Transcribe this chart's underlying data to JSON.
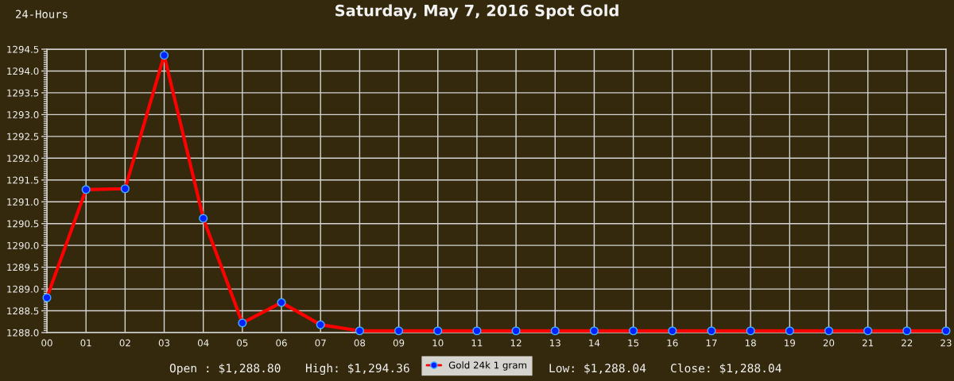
{
  "chart_data": {
    "type": "line",
    "title": "Saturday, May 7, 2016 Spot Gold",
    "annotations": [
      "24-Hours",
      "Open : $1,288.80",
      "High: $1,294.36",
      "Low: $1,288.04",
      "Close: $1,288.04"
    ],
    "categories": [
      "00",
      "01",
      "02",
      "03",
      "04",
      "05",
      "06",
      "07",
      "08",
      "09",
      "10",
      "11",
      "12",
      "13",
      "14",
      "15",
      "16",
      "17",
      "18",
      "19",
      "20",
      "21",
      "22",
      "23"
    ],
    "series": [
      {
        "name": "Gold 24k 1 gram",
        "color": "#ff0000",
        "values": [
          1288.8,
          1291.28,
          1291.3,
          1294.36,
          1290.62,
          1288.22,
          1288.69,
          1288.18,
          1288.04,
          1288.04,
          1288.04,
          1288.04,
          1288.04,
          1288.04,
          1288.04,
          1288.04,
          1288.04,
          1288.04,
          1288.04,
          1288.04,
          1288.04,
          1288.04,
          1288.04,
          1288.04
        ]
      }
    ],
    "ylim": [
      1288,
      1294.5
    ],
    "yticks": [
      {
        "value": 1288,
        "label": "1288.0"
      },
      {
        "value": 1288.05,
        "label": null
      },
      {
        "value": 1288.1,
        "label": null
      },
      {
        "value": 1288.15,
        "label": null
      },
      {
        "value": 1288.2,
        "label": null
      },
      {
        "value": 1288.25,
        "label": null
      },
      {
        "value": 1288.3,
        "label": null
      },
      {
        "value": 1288.35,
        "label": null
      },
      {
        "value": 1288.4,
        "label": null
      },
      {
        "value": 1288.45,
        "label": null
      },
      1288.5,
      {
        "value": 1288.55,
        "label": null
      },
      {
        "value": 1288.6,
        "label": null
      },
      {
        "value": 1288.65,
        "label": null
      },
      {
        "value": 1288.7,
        "label": null
      },
      {
        "value": 1288.75,
        "label": null
      },
      {
        "value": 1288.8,
        "label": null
      },
      {
        "value": 1288.85,
        "label": null
      },
      {
        "value": 1288.9,
        "label": null
      },
      {
        "value": 1288.95,
        "label": null
      },
      {
        "value": 1289,
        "label": "1289.0"
      },
      {
        "value": 1289.05,
        "label": null
      },
      {
        "value": 1289.1,
        "label": null
      },
      {
        "value": 1289.15,
        "label": null
      },
      {
        "value": 1289.2,
        "label": null
      },
      {
        "value": 1289.25,
        "label": null
      },
      {
        "value": 1289.3,
        "label": null
      },
      {
        "value": 1289.35,
        "label": null
      },
      {
        "value": 1289.4,
        "label": null
      },
      {
        "value": 1289.45,
        "label": null
      },
      1289.5,
      {
        "value": 1289.55,
        "label": null
      },
      {
        "value": 1289.6,
        "label": null
      },
      {
        "value": 1289.65,
        "label": null
      },
      {
        "value": 1289.7,
        "label": null
      },
      {
        "value": 1289.75,
        "label": null
      },
      {
        "value": 1289.8,
        "label": null
      },
      {
        "value": 1289.85,
        "label": null
      },
      {
        "value": 1289.9,
        "label": null
      },
      {
        "value": 1289.95,
        "label": null
      },
      {
        "value": 1290,
        "label": "1290.0"
      },
      {
        "value": 1290.05,
        "label": null
      },
      {
        "value": 1290.1,
        "label": null
      },
      {
        "value": 1290.15,
        "label": null
      },
      {
        "value": 1290.2,
        "label": null
      },
      {
        "value": 1290.25,
        "label": null
      },
      {
        "value": 1290.3,
        "label": null
      },
      {
        "value": 1290.35,
        "label": null
      },
      {
        "value": 1290.4,
        "label": null
      },
      {
        "value": 1290.45,
        "label": null
      },
      1290.5,
      {
        "value": 1290.55,
        "label": null
      },
      {
        "value": 1290.6,
        "label": null
      },
      {
        "value": 1290.65,
        "label": null
      },
      {
        "value": 1290.7,
        "label": null
      },
      {
        "value": 1290.75,
        "label": null
      },
      {
        "value": 1290.8,
        "label": null
      },
      {
        "value": 1290.85,
        "label": null
      },
      {
        "value": 1290.9,
        "label": null
      },
      {
        "value": 1290.95,
        "label": null
      },
      {
        "value": 1291,
        "label": "1291.0"
      },
      {
        "value": 1291.05,
        "label": null
      },
      {
        "value": 1291.1,
        "label": null
      },
      {
        "value": 1291.15,
        "label": null
      },
      {
        "value": 1291.2,
        "label": null
      },
      {
        "value": 1291.25,
        "label": null
      },
      {
        "value": 1291.3,
        "label": null
      },
      {
        "value": 1291.35,
        "label": null
      },
      {
        "value": 1291.4,
        "label": null
      },
      {
        "value": 1291.45,
        "label": null
      },
      1291.5,
      {
        "value": 1291.55,
        "label": null
      },
      {
        "value": 1291.6,
        "label": null
      },
      {
        "value": 1291.65,
        "label": null
      },
      {
        "value": 1291.7,
        "label": null
      },
      {
        "value": 1291.75,
        "label": null
      },
      {
        "value": 1291.8,
        "label": null
      },
      {
        "value": 1291.85,
        "label": null
      },
      {
        "value": 1291.9,
        "label": null
      },
      {
        "value": 1291.95,
        "label": null
      },
      {
        "value": 1292,
        "label": "1292.0"
      },
      {
        "value": 1292.05,
        "label": null
      },
      {
        "value": 1292.1,
        "label": null
      },
      {
        "value": 1292.15,
        "label": null
      },
      {
        "value": 1292.2,
        "label": null
      },
      {
        "value": 1292.25,
        "label": null
      },
      {
        "value": 1292.3,
        "label": null
      },
      {
        "value": 1292.35,
        "label": null
      },
      {
        "value": 1292.4,
        "label": null
      },
      {
        "value": 1292.45,
        "label": null
      },
      1292.5,
      {
        "value": 1292.55,
        "label": null
      },
      {
        "value": 1292.6,
        "label": null
      },
      {
        "value": 1292.65,
        "label": null
      },
      {
        "value": 1292.7,
        "label": null
      },
      {
        "value": 1292.75,
        "label": null
      },
      {
        "value": 1292.8,
        "label": null
      },
      {
        "value": 1292.85,
        "label": null
      },
      {
        "value": 1292.9,
        "label": null
      },
      {
        "value": 1292.95,
        "label": null
      },
      {
        "value": 1293,
        "label": "1293.0"
      },
      {
        "value": 1293.05,
        "label": null
      },
      {
        "value": 1293.1,
        "label": null
      },
      {
        "value": 1293.15,
        "label": null
      },
      {
        "value": 1293.2,
        "label": null
      },
      {
        "value": 1293.25,
        "label": null
      },
      {
        "value": 1293.3,
        "label": null
      },
      {
        "value": 1293.35,
        "label": null
      },
      {
        "value": 1293.4,
        "label": null
      },
      {
        "value": 1293.45,
        "label": null
      },
      1293.5,
      {
        "value": 1293.55,
        "label": null
      },
      {
        "value": 1293.6,
        "label": null
      },
      {
        "value": 1293.65,
        "label": null
      },
      {
        "value": 1293.7,
        "label": null
      },
      {
        "value": 1293.75,
        "label": null
      },
      {
        "value": 1293.8,
        "label": null
      },
      {
        "value": 1293.85,
        "label": null
      },
      {
        "value": 1293.9,
        "label": null
      },
      {
        "value": 1293.95,
        "label": null
      },
      {
        "value": 1294,
        "label": "1294.0"
      },
      {
        "value": 1294.05,
        "label": null
      },
      {
        "value": 1294.1,
        "label": null
      },
      {
        "value": 1294.15,
        "label": null
      },
      {
        "value": 1294.2,
        "label": null
      },
      {
        "value": 1294.25,
        "label": null
      },
      {
        "value": 1294.3,
        "label": null
      },
      {
        "value": 1294.35,
        "label": null
      },
      {
        "value": 1294.4,
        "label": null
      },
      {
        "value": 1294.45,
        "label": null
      },
      1294.5
    ],
    "grid": true,
    "legend": "bottom",
    "marker": "circle",
    "line_style": "solid"
  }
}
